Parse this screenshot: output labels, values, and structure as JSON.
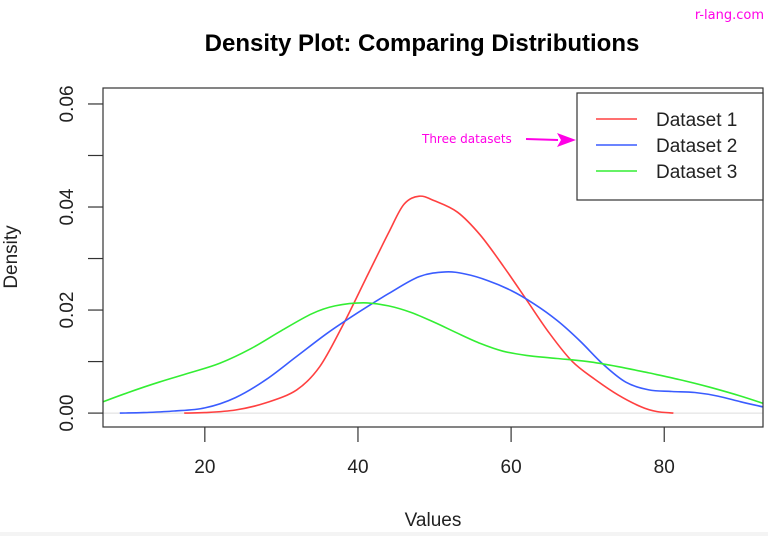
{
  "watermark": "r-lang.com",
  "annotation": {
    "text": "Three datasets",
    "color": "#ff00e6"
  },
  "chart_data": {
    "type": "line",
    "title": "Density Plot: Comparing Distributions",
    "xlabel": "Values",
    "ylabel": "Density",
    "xlim": [
      6.7,
      92.9
    ],
    "ylim": [
      -0.0027,
      0.0631
    ],
    "x_ticks": [
      20,
      40,
      60,
      80
    ],
    "x_tick_labels": [
      "20",
      "40",
      "60",
      "80"
    ],
    "y_ticks": [
      0,
      0.01,
      0.02,
      0.03,
      0.04,
      0.05,
      0.06
    ],
    "y_tick_labels": [
      "0.00",
      "",
      "0.02",
      "",
      "0.04",
      "",
      "0.06"
    ],
    "grid": false,
    "legend_position": "topright",
    "series": [
      {
        "name": "Dataset 1",
        "color": "#ff4040",
        "points": [
          [
            17.3,
            0.0
          ],
          [
            20,
            0.0001
          ],
          [
            24,
            0.0006
          ],
          [
            28,
            0.002
          ],
          [
            32,
            0.0045
          ],
          [
            35,
            0.009
          ],
          [
            38,
            0.017
          ],
          [
            41,
            0.026
          ],
          [
            44,
            0.035
          ],
          [
            46,
            0.0405
          ],
          [
            48,
            0.0421
          ],
          [
            50,
            0.0412
          ],
          [
            53,
            0.039
          ],
          [
            56,
            0.0345
          ],
          [
            59,
            0.0285
          ],
          [
            62,
            0.022
          ],
          [
            65,
            0.0155
          ],
          [
            68,
            0.01
          ],
          [
            71,
            0.0065
          ],
          [
            74,
            0.0035
          ],
          [
            77,
            0.0012
          ],
          [
            79,
            0.0003
          ],
          [
            81.2,
            0.0
          ]
        ]
      },
      {
        "name": "Dataset 2",
        "color": "#3a5cff",
        "points": [
          [
            8.9,
            0.0
          ],
          [
            12,
            0.0001
          ],
          [
            16,
            0.0004
          ],
          [
            20,
            0.001
          ],
          [
            24,
            0.003
          ],
          [
            28,
            0.0065
          ],
          [
            32,
            0.011
          ],
          [
            36,
            0.0155
          ],
          [
            40,
            0.0195
          ],
          [
            44,
            0.0232
          ],
          [
            48,
            0.0265
          ],
          [
            51.4,
            0.0274
          ],
          [
            54,
            0.027
          ],
          [
            57,
            0.0257
          ],
          [
            60,
            0.0238
          ],
          [
            63,
            0.0212
          ],
          [
            66,
            0.018
          ],
          [
            69,
            0.014
          ],
          [
            72,
            0.0095
          ],
          [
            75,
            0.006
          ],
          [
            78,
            0.0045
          ],
          [
            81,
            0.0042
          ],
          [
            84,
            0.004
          ],
          [
            87,
            0.0033
          ],
          [
            90,
            0.0022
          ],
          [
            92.9,
            0.0012
          ]
        ]
      },
      {
        "name": "Dataset 3",
        "color": "#33ee33",
        "points": [
          [
            6.7,
            0.0022
          ],
          [
            10,
            0.004
          ],
          [
            14,
            0.006
          ],
          [
            18,
            0.0078
          ],
          [
            22,
            0.0097
          ],
          [
            26,
            0.0125
          ],
          [
            30,
            0.016
          ],
          [
            34,
            0.0193
          ],
          [
            37,
            0.0208
          ],
          [
            40.7,
            0.0214
          ],
          [
            44,
            0.0208
          ],
          [
            47,
            0.0195
          ],
          [
            50,
            0.0176
          ],
          [
            53,
            0.0155
          ],
          [
            56,
            0.0135
          ],
          [
            59,
            0.012
          ],
          [
            62,
            0.0112
          ],
          [
            66,
            0.0106
          ],
          [
            70,
            0.01
          ],
          [
            74,
            0.009
          ],
          [
            78,
            0.0078
          ],
          [
            82,
            0.0065
          ],
          [
            86,
            0.005
          ],
          [
            90,
            0.0033
          ],
          [
            92.9,
            0.0019
          ]
        ]
      }
    ]
  }
}
